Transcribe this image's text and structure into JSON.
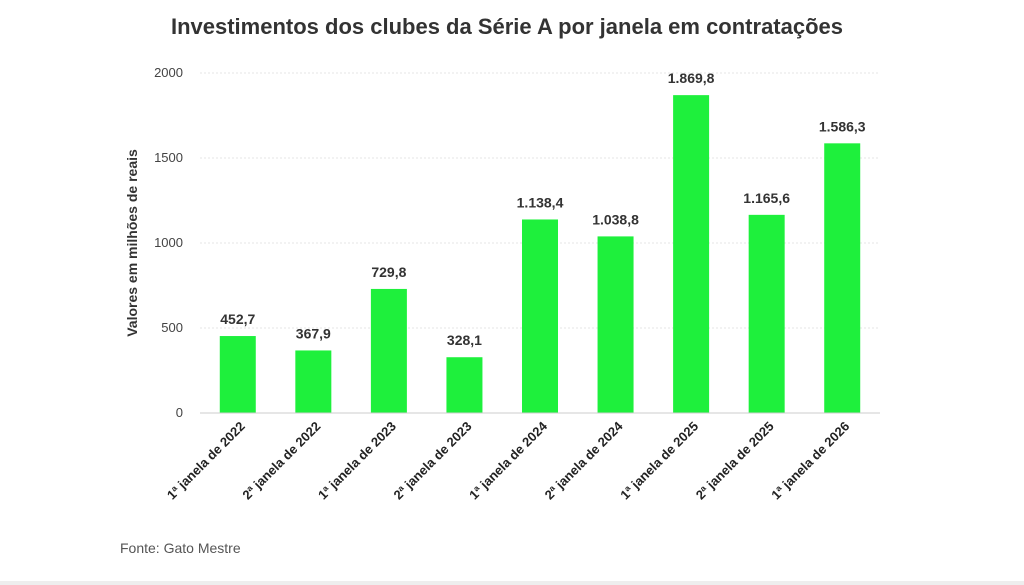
{
  "chart_data": {
    "type": "bar",
    "title": "Investimentos dos clubes da Série A por janela em contratações",
    "ylabel": "Valores em milhões de reais",
    "xlabel": "",
    "ylim": [
      0,
      2000
    ],
    "yticks": [
      "0",
      "500",
      "1000",
      "1500",
      "2000"
    ],
    "ytick_values": [
      0,
      500,
      1000,
      1500,
      2000
    ],
    "grid": true,
    "bar_color": "#1ef03c",
    "categories": [
      "1ª janela de 2022",
      "2ª janela de 2022",
      "1ª janela de 2023",
      "2ª janela de 2023",
      "1ª janela de 2024",
      "2ª janela de 2024",
      "1ª janela de 2025",
      "2ª janela de 2025",
      "1ª janela de 2026"
    ],
    "values": [
      452.7,
      367.9,
      729.8,
      328.1,
      1138.4,
      1038.8,
      1869.8,
      1165.6,
      1586.3
    ],
    "value_labels": [
      "452,7",
      "367,9",
      "729,8",
      "328,1",
      "1.138,4",
      "1.038,8",
      "1.869,8",
      "1.165,6",
      "1.586,3"
    ]
  },
  "source": "Fonte: Gato Mestre"
}
